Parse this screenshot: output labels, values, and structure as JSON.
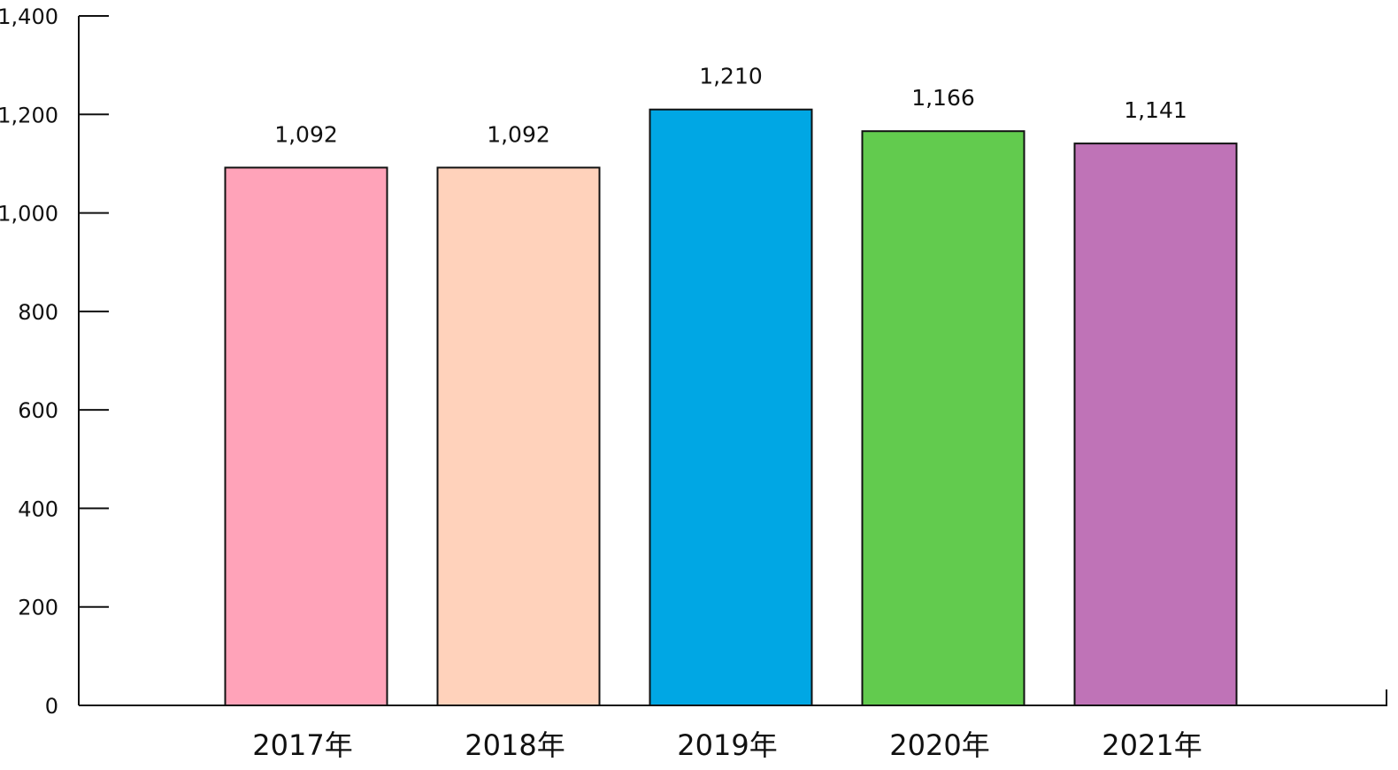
{
  "chart_data": {
    "type": "bar",
    "title": "",
    "xlabel": "",
    "ylabel": "",
    "categories": [
      "2017年",
      "2018年",
      "2019年",
      "2020年",
      "2021年"
    ],
    "values": [
      1092,
      1092,
      1210,
      1166,
      1141
    ],
    "value_labels": [
      "1,092",
      "1,092",
      "1,210",
      "1,166",
      "1,141"
    ],
    "colors": [
      "#ffa3b9",
      "#ffd2bb",
      "#00a7e4",
      "#62cb4e",
      "#bf73b7"
    ],
    "ylim": [
      0,
      1400
    ],
    "yticks": [
      0,
      200,
      400,
      600,
      800,
      1000,
      1200,
      1400
    ],
    "ytick_labels": [
      "0",
      "200",
      "400",
      "600",
      "800",
      "1,000",
      "1,200",
      "1,400"
    ],
    "grid": false,
    "legend": "none"
  }
}
